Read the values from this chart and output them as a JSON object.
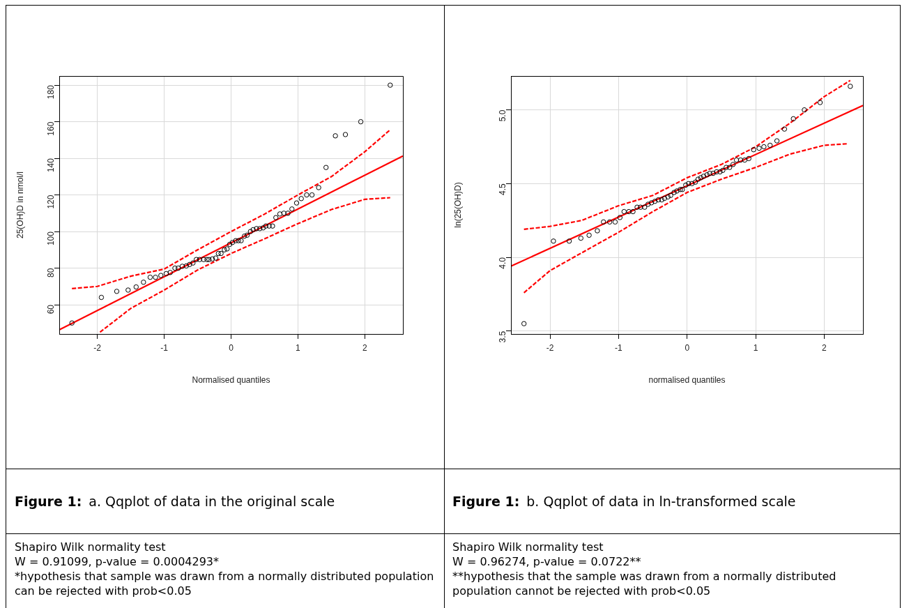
{
  "chart_data": [
    {
      "type": "scatter",
      "xlabel": "Normalised quantiles",
      "ylabel": "25(OH)D in nmol/l",
      "xlim": [
        -2.57,
        2.57
      ],
      "xticks": [
        -2,
        -1,
        0,
        1,
        2
      ],
      "ylim": [
        44,
        185
      ],
      "yticks": [
        60,
        80,
        100,
        120,
        140,
        160,
        180
      ],
      "grid": true,
      "annotations": [
        "Figure 1:",
        "a. Qqplot of data in the original scale",
        "Shapiro Wilk normality test",
        "W = 0.91099, p-value = 0.0004293*",
        "*hypothesis that sample was drawn from a normally distributed population can be rejected with prob<0.05"
      ],
      "series": [
        {
          "type": "scatter",
          "marker": "circle",
          "color": "#000000",
          "x": [
            -2.38,
            -1.94,
            -1.71,
            -1.54,
            -1.42,
            -1.31,
            -1.21,
            -1.13,
            -1.05,
            -0.97,
            -0.91,
            -0.84,
            -0.79,
            -0.73,
            -0.67,
            -0.62,
            -0.57,
            -0.52,
            -0.47,
            -0.41,
            -0.36,
            -0.33,
            -0.28,
            -0.23,
            -0.19,
            -0.15,
            -0.1,
            -0.06,
            -0.02,
            0.02,
            0.07,
            0.11,
            0.15,
            0.2,
            0.24,
            0.29,
            0.33,
            0.38,
            0.43,
            0.48,
            0.52,
            0.57,
            0.62,
            0.67,
            0.73,
            0.79,
            0.85,
            0.91,
            0.98,
            1.05,
            1.13,
            1.21,
            1.31,
            1.42,
            1.56,
            1.71,
            1.94,
            2.38
          ],
          "values": [
            50,
            64,
            67.3,
            68,
            69.7,
            72.3,
            75,
            75,
            76,
            77,
            77.6,
            80,
            80,
            81,
            81.2,
            82,
            82.8,
            84.7,
            84.7,
            84.7,
            84.7,
            84.7,
            85,
            85.5,
            88,
            88,
            90,
            90.5,
            93,
            94,
            95,
            95,
            95,
            97.5,
            98,
            100,
            101,
            101.6,
            101.6,
            102,
            103,
            103,
            103,
            107.6,
            109.6,
            110,
            110,
            112.3,
            115.6,
            118,
            120,
            120,
            124,
            135,
            152.3,
            153,
            160,
            180
          ]
        },
        {
          "type": "line",
          "marker": "none",
          "line_style": "solid",
          "color": "#ff0000",
          "x": [
            -2.57,
            2.57
          ],
          "values": [
            46.3,
            141.3
          ]
        },
        {
          "type": "line",
          "marker": "none",
          "line_style": "dashed",
          "color": "#ff0000",
          "x": [
            -2.38,
            -2,
            -1.5,
            -1,
            -0.5,
            0,
            0.5,
            1,
            1.5,
            2,
            2.38
          ],
          "values": [
            68.8,
            70,
            75.6,
            79.5,
            90,
            100,
            109.5,
            120,
            130,
            143.6,
            155.6
          ]
        },
        {
          "type": "line",
          "marker": "none",
          "line_style": "dashed",
          "color": "#ff0000",
          "x": [
            -1.96,
            -1.5,
            -1,
            -0.5,
            0,
            0.5,
            1,
            1.5,
            2,
            2.38
          ],
          "values": [
            45,
            58,
            68,
            79,
            88,
            96,
            104.3,
            112,
            117.6,
            118.5
          ]
        }
      ]
    },
    {
      "type": "scatter",
      "xlabel": "normalised quantiles",
      "ylabel": "ln(25(OH)D)",
      "xlim": [
        -2.57,
        2.565
      ],
      "xticks": [
        -2,
        -1,
        0,
        1,
        2
      ],
      "ylim": [
        3.48,
        5.23
      ],
      "yticks": [
        3.5,
        {
          "value": 4,
          "label": "4.0"
        },
        4.5,
        {
          "value": 5,
          "label": "5.0"
        }
      ],
      "grid": true,
      "annotations": [
        "Figure 1:",
        "b. Qqplot of data in ln-transformed scale",
        "Shapiro Wilk normality test",
        "W = 0.96274, p-value = 0.0722**",
        "**hypothesis that the sample was drawn from a normally distributed population cannot be rejected with prob<0.05"
      ],
      "series": [
        {
          "type": "scatter",
          "marker": "circle",
          "color": "#000000",
          "x": [
            -2.38,
            -1.95,
            -1.72,
            -1.55,
            -1.43,
            -1.31,
            -1.22,
            -1.13,
            -1.05,
            -0.98,
            -0.92,
            -0.85,
            -0.79,
            -0.73,
            -0.68,
            -0.62,
            -0.57,
            -0.52,
            -0.47,
            -0.42,
            -0.37,
            -0.33,
            -0.28,
            -0.24,
            -0.19,
            -0.15,
            -0.1,
            -0.07,
            -0.02,
            0.02,
            0.07,
            0.12,
            0.16,
            0.2,
            0.24,
            0.29,
            0.33,
            0.38,
            0.43,
            0.48,
            0.52,
            0.57,
            0.62,
            0.67,
            0.72,
            0.78,
            0.84,
            0.9,
            0.97,
            1.05,
            1.12,
            1.21,
            1.31,
            1.42,
            1.55,
            1.71,
            1.94,
            2.38
          ],
          "values": [
            3.55,
            4.11,
            4.11,
            4.13,
            4.15,
            4.18,
            4.24,
            4.24,
            4.24,
            4.27,
            4.31,
            4.31,
            4.31,
            4.34,
            4.34,
            4.34,
            4.36,
            4.37,
            4.38,
            4.39,
            4.39,
            4.4,
            4.41,
            4.42,
            4.44,
            4.45,
            4.46,
            4.46,
            4.49,
            4.5,
            4.5,
            4.51,
            4.53,
            4.54,
            4.55,
            4.56,
            4.57,
            4.57,
            4.58,
            4.58,
            4.59,
            4.61,
            4.61,
            4.63,
            4.66,
            4.66,
            4.66,
            4.67,
            4.73,
            4.74,
            4.75,
            4.76,
            4.79,
            4.87,
            4.94,
            5.0,
            5.05,
            5.16
          ]
        },
        {
          "type": "line",
          "marker": "none",
          "line_style": "solid",
          "color": "#ff0000",
          "x": [
            -2.57,
            2.565
          ],
          "values": [
            3.94,
            5.03
          ]
        },
        {
          "type": "line",
          "marker": "none",
          "line_style": "dashed",
          "color": "#ff0000",
          "x": [
            -2.38,
            -2,
            -1.54,
            -1,
            -0.5,
            0,
            0.5,
            1,
            1.5,
            2,
            2.38
          ],
          "values": [
            4.19,
            4.21,
            4.25,
            4.35,
            4.42,
            4.54,
            4.63,
            4.75,
            4.91,
            5.09,
            5.2
          ]
        },
        {
          "type": "line",
          "marker": "none",
          "line_style": "dashed",
          "color": "#ff0000",
          "x": [
            -2.38,
            -2,
            -1.54,
            -1,
            -0.5,
            0,
            0.5,
            1,
            1.5,
            2,
            2.33
          ],
          "values": [
            3.76,
            3.91,
            4.03,
            4.17,
            4.31,
            4.44,
            4.53,
            4.61,
            4.7,
            4.76,
            4.77
          ]
        }
      ]
    }
  ]
}
